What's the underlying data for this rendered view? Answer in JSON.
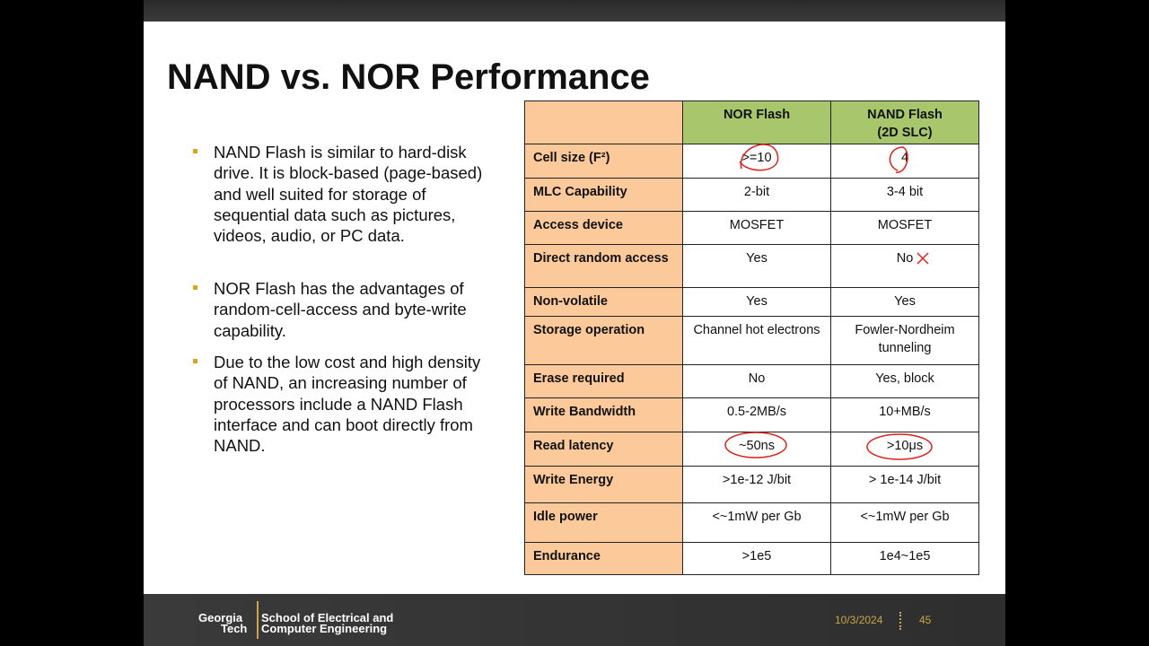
{
  "slide": {
    "title": "NAND vs. NOR Performance",
    "bullets": [
      "NAND Flash is similar to hard-disk drive. It is block-based (page-based) and well suited for storage of sequential data such as pictures, videos, audio, or PC data.",
      "NOR Flash has the advantages of random-cell-access and byte-write capability.",
      "Due to the low cost and high density of NAND, an increasing number of processors include a NAND Flash interface and can boot directly from NAND."
    ],
    "table": {
      "header": [
        "NOR Flash",
        "NAND Flash\n(2D SLC)"
      ],
      "rows": [
        [
          "Cell size (F²)",
          ">=10",
          "4"
        ],
        [
          "MLC Capability",
          "2-bit",
          "3-4 bit"
        ],
        [
          "Access device",
          "MOSFET",
          "MOSFET"
        ],
        [
          "Direct random access",
          "Yes",
          "No"
        ],
        [
          "Non-volatile",
          "Yes",
          "Yes"
        ],
        [
          "Storage operation",
          "Channel hot electrons",
          "Fowler-Nordheim tunneling"
        ],
        [
          "Erase required",
          "No",
          "Yes, block"
        ],
        [
          "Write Bandwidth",
          "0.5-2MB/s",
          "10+MB/s"
        ],
        [
          "Read latency",
          "~50ns",
          ">10μs"
        ],
        [
          "Write Energy",
          ">1e-12 J/bit",
          "> 1e-14 J/bit"
        ],
        [
          "Idle power",
          "<~1mW per Gb",
          "<~1mW per Gb"
        ],
        [
          "Endurance",
          ">1e5",
          "1e4~1e5"
        ]
      ]
    },
    "footer": {
      "logo_georgia": "Georgia",
      "logo_tech": "Tech",
      "school_line1": "School of Electrical and",
      "school_line2": "Computer Engineering",
      "date": "10/3/2024",
      "page": "45"
    }
  }
}
